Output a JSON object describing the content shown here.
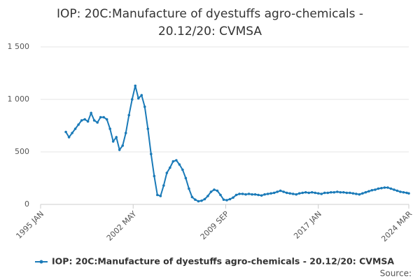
{
  "chart_data": {
    "type": "line",
    "title": "IOP: 20C:Manufacture of dyestuffs agro-chemicals - 20.12/20: CVMSA",
    "source_label": "Source:",
    "x": [
      "1997 JAN",
      "1997 APR",
      "1997 JUL",
      "1997 OCT",
      "1998 JAN",
      "1998 APR",
      "1998 JUL",
      "1998 OCT",
      "1999 JAN",
      "1999 APR",
      "1999 JUL",
      "1999 OCT",
      "2000 JAN",
      "2000 APR",
      "2000 JUL",
      "2000 OCT",
      "2001 JAN",
      "2001 APR",
      "2001 JUL",
      "2001 OCT",
      "2002 JAN",
      "2002 APR",
      "2002 JUL",
      "2002 OCT",
      "2003 JAN",
      "2003 APR",
      "2003 JUL",
      "2003 OCT",
      "2004 JAN",
      "2004 APR",
      "2004 JUL",
      "2004 OCT",
      "2005 JAN",
      "2005 APR",
      "2005 JUL",
      "2005 OCT",
      "2006 JAN",
      "2006 APR",
      "2006 JUL",
      "2006 OCT",
      "2007 JAN",
      "2007 APR",
      "2007 JUL",
      "2007 OCT",
      "2008 JAN",
      "2008 APR",
      "2008 JUL",
      "2008 OCT",
      "2009 JAN",
      "2009 APR",
      "2009 JUL",
      "2009 OCT",
      "2010 JAN",
      "2010 APR",
      "2010 JUL",
      "2010 OCT",
      "2011 JAN",
      "2011 APR",
      "2011 JUL",
      "2011 OCT",
      "2012 JAN",
      "2012 APR",
      "2012 JUL",
      "2012 OCT",
      "2013 JAN",
      "2013 APR",
      "2013 JUL",
      "2013 OCT",
      "2014 JAN",
      "2014 APR",
      "2014 JUL",
      "2014 OCT",
      "2015 JAN",
      "2015 APR",
      "2015 JUL",
      "2015 OCT",
      "2016 JAN",
      "2016 APR",
      "2016 JUL",
      "2016 OCT",
      "2017 JAN",
      "2017 APR",
      "2017 JUL",
      "2017 OCT",
      "2018 JAN",
      "2018 APR",
      "2018 JUL",
      "2018 OCT",
      "2019 JAN",
      "2019 APR",
      "2019 JUL",
      "2019 OCT",
      "2020 JAN",
      "2020 APR",
      "2020 JUL",
      "2020 OCT",
      "2021 JAN",
      "2021 APR",
      "2021 JUL",
      "2021 OCT",
      "2022 JAN",
      "2022 APR",
      "2022 JUL",
      "2022 OCT",
      "2023 JAN",
      "2023 APR",
      "2023 JUL",
      "2023 OCT",
      "2024 JAN",
      "2024 MAR"
    ],
    "series": [
      {
        "name": "IOP: 20C:Manufacture of dyestuffs agro-chemicals - 20.12/20: CVMSA",
        "color": "#1a7ab8",
        "values": [
          690,
          640,
          680,
          720,
          760,
          800,
          810,
          790,
          870,
          800,
          780,
          830,
          830,
          810,
          720,
          600,
          640,
          520,
          560,
          680,
          850,
          1000,
          1130,
          1010,
          1040,
          930,
          720,
          480,
          270,
          90,
          80,
          180,
          300,
          350,
          410,
          420,
          380,
          330,
          250,
          150,
          70,
          45,
          30,
          35,
          50,
          80,
          120,
          140,
          130,
          90,
          45,
          40,
          50,
          65,
          90,
          100,
          100,
          95,
          100,
          95,
          95,
          90,
          85,
          95,
          100,
          105,
          110,
          120,
          130,
          120,
          110,
          105,
          100,
          95,
          105,
          110,
          115,
          110,
          115,
          110,
          105,
          100,
          110,
          110,
          115,
          115,
          120,
          115,
          115,
          110,
          110,
          105,
          100,
          95,
          105,
          115,
          125,
          135,
          140,
          150,
          155,
          160,
          160,
          150,
          140,
          130,
          120,
          115,
          110,
          105
        ]
      }
    ],
    "xlim": [
      "1995 JAN",
      "2024 MAR"
    ],
    "xticks": [
      "1995 JAN",
      "2002 MAY",
      "2009 SEP",
      "2017 JAN",
      "2024 MAR"
    ],
    "ylim": [
      0,
      1500
    ],
    "yticks": [
      0,
      500,
      {
        "value": 1000,
        "label": "1 000"
      },
      {
        "value": 1500,
        "label": "1 500"
      }
    ],
    "grid": true
  }
}
